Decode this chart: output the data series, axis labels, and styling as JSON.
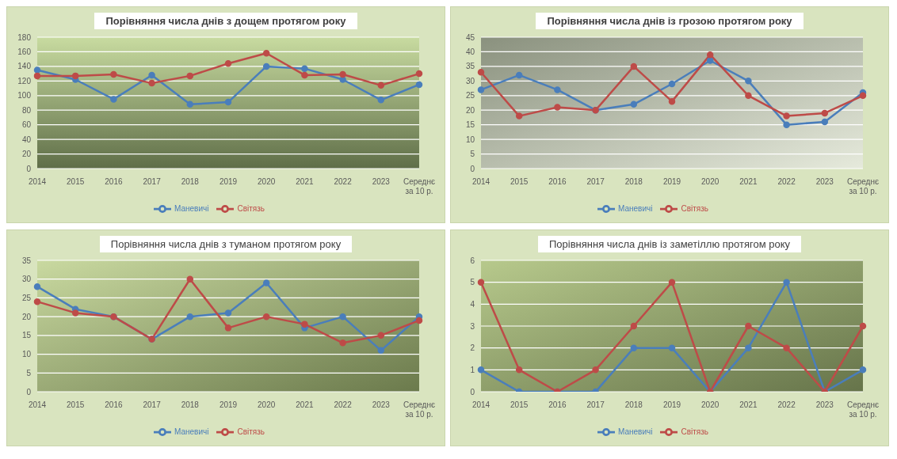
{
  "chart_data": [
    {
      "type": "line",
      "title": "Порівняння числа днів з дощем протягом року",
      "categories": [
        "2014",
        "2015",
        "2016",
        "2017",
        "2018",
        "2019",
        "2020",
        "2021",
        "2022",
        "2023",
        "Середнє за 10 р."
      ],
      "ylim": [
        0,
        180
      ],
      "yticks": [
        0,
        20,
        40,
        60,
        80,
        100,
        120,
        140,
        160,
        180
      ],
      "grid": "y",
      "legend": "bottom",
      "marker": "circle",
      "line_style": "solid",
      "series": [
        {
          "name": "Маневичі",
          "color": "#4a7ebb",
          "values": [
            135,
            122,
            95,
            128,
            88,
            91,
            140,
            137,
            122,
            94,
            115
          ]
        },
        {
          "name": "Світязь",
          "color": "#be4b48",
          "values": [
            127,
            127,
            129,
            117,
            127,
            144,
            158,
            128,
            129,
            114,
            130
          ]
        }
      ]
    },
    {
      "type": "line",
      "title": "Порівняння числа днів із грозою протягом року",
      "categories": [
        "2014",
        "2015",
        "2016",
        "2017",
        "2018",
        "2019",
        "2020",
        "2021",
        "2022",
        "2023",
        "Середнє за 10 р."
      ],
      "ylim": [
        0,
        45
      ],
      "yticks": [
        0,
        5,
        10,
        15,
        20,
        25,
        30,
        35,
        40,
        45
      ],
      "grid": "y",
      "legend": "bottom",
      "marker": "circle",
      "line_style": "solid",
      "series": [
        {
          "name": "Маневичі",
          "color": "#4a7ebb",
          "values": [
            27,
            32,
            27,
            20,
            22,
            29,
            37,
            30,
            15,
            16,
            26
          ]
        },
        {
          "name": "Світязь",
          "color": "#be4b48",
          "values": [
            33,
            18,
            21,
            20,
            35,
            23,
            39,
            25,
            18,
            19,
            25
          ]
        }
      ]
    },
    {
      "type": "line",
      "title": "Порівняння числа днів з туманом протягом року",
      "categories": [
        "2014",
        "2015",
        "2016",
        "2017",
        "2018",
        "2019",
        "2020",
        "2021",
        "2022",
        "2023",
        "Середнє за 10 р."
      ],
      "ylim": [
        0,
        35
      ],
      "yticks": [
        0,
        5,
        10,
        15,
        20,
        25,
        30,
        35
      ],
      "grid": "y",
      "legend": "bottom",
      "marker": "circle",
      "line_style": "solid",
      "series": [
        {
          "name": "Маневичі",
          "color": "#4a7ebb",
          "values": [
            28,
            22,
            20,
            14,
            20,
            21,
            29,
            17,
            20,
            11,
            20
          ]
        },
        {
          "name": "Світязь",
          "color": "#be4b48",
          "values": [
            24,
            21,
            20,
            14,
            30,
            17,
            20,
            18,
            13,
            15,
            19
          ]
        }
      ]
    },
    {
      "type": "line",
      "title": "Порівняння числа днів із заметіллю протягом року",
      "categories": [
        "2014",
        "2015",
        "2016",
        "2017",
        "2018",
        "2019",
        "2020",
        "2021",
        "2022",
        "2023",
        "Середнє за 10 р."
      ],
      "ylim": [
        0,
        6
      ],
      "yticks": [
        0,
        1,
        2,
        3,
        4,
        5,
        6
      ],
      "grid": "y",
      "legend": "bottom",
      "marker": "circle",
      "line_style": "solid",
      "series": [
        {
          "name": "Маневичі",
          "color": "#4a7ebb",
          "values": [
            1,
            0,
            0,
            0,
            2,
            2,
            0,
            2,
            5,
            0,
            1
          ]
        },
        {
          "name": "Світязь",
          "color": "#be4b48",
          "values": [
            5,
            1,
            0,
            1,
            3,
            5,
            0,
            3,
            2,
            0,
            3
          ]
        }
      ]
    }
  ]
}
